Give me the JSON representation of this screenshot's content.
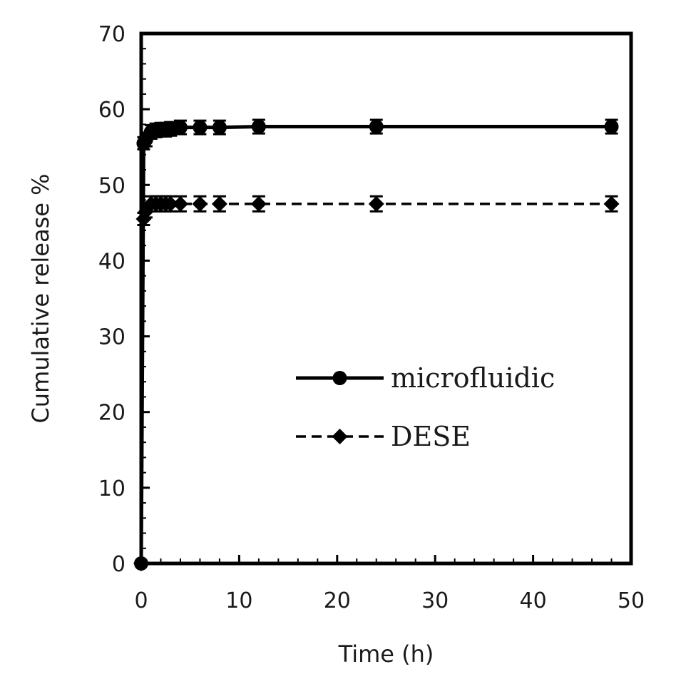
{
  "chart_data": {
    "type": "line",
    "title": "",
    "xlabel": "Time (h)",
    "ylabel": "Cumulative release %",
    "xlim": [
      0,
      50
    ],
    "ylim": [
      0,
      70
    ],
    "x_ticks": [
      0,
      10,
      20,
      30,
      40,
      50
    ],
    "y_ticks": [
      0,
      10,
      20,
      30,
      40,
      50,
      60,
      70
    ],
    "x_tick_labels": [
      "0",
      "10",
      "20",
      "30",
      "40",
      "50"
    ],
    "y_tick_labels": [
      "0",
      "10",
      "20",
      "30",
      "40",
      "50",
      "60",
      "70"
    ],
    "grid": false,
    "legend_position": "center-right",
    "series": [
      {
        "name": "microfluidic",
        "line_style": "solid",
        "marker": "circle",
        "color": "#000000",
        "x": [
          0,
          0.25,
          0.5,
          1,
          1.5,
          2,
          2.5,
          3,
          4,
          6,
          8,
          12,
          24,
          48
        ],
        "y": [
          0,
          55.5,
          56.0,
          57.0,
          57.2,
          57.3,
          57.3,
          57.4,
          57.6,
          57.6,
          57.6,
          57.7,
          57.7,
          57.7
        ],
        "error": [
          0,
          0.8,
          0.9,
          0.9,
          0.9,
          0.9,
          0.9,
          0.9,
          0.9,
          0.9,
          0.9,
          0.9,
          0.9,
          0.9
        ]
      },
      {
        "name": "DESE",
        "line_style": "dashed",
        "marker": "diamond",
        "color": "#000000",
        "x": [
          0,
          0.25,
          0.5,
          1,
          1.5,
          2,
          2.5,
          3,
          4,
          6,
          8,
          12,
          24,
          48
        ],
        "y": [
          0,
          45.5,
          46.5,
          47.5,
          47.5,
          47.5,
          47.5,
          47.5,
          47.5,
          47.5,
          47.5,
          47.5,
          47.5,
          47.5
        ],
        "error": [
          0,
          0.8,
          0.8,
          1.0,
          1.0,
          1.0,
          1.0,
          1.0,
          1.0,
          1.0,
          1.0,
          1.0,
          1.0,
          1.0
        ]
      }
    ]
  }
}
